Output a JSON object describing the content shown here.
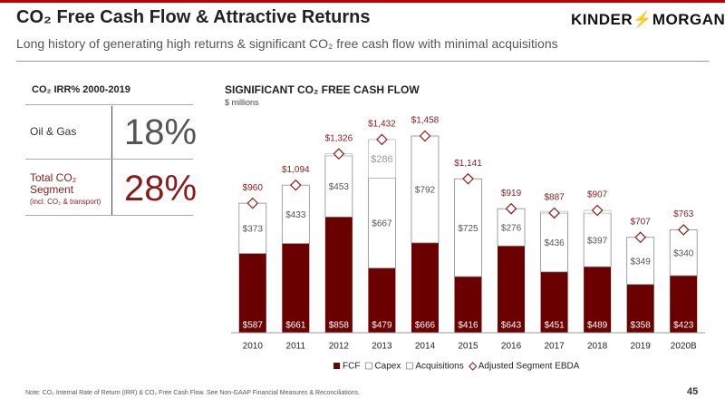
{
  "header": {
    "title": "CO₂ Free Cash Flow & Attractive Returns",
    "subtitle": "Long history of generating high returns & significant CO₂ free cash flow with minimal acquisitions",
    "logo": [
      "KINDER",
      "MORGAN"
    ]
  },
  "irr_table": {
    "title": "CO₂ IRR% 2000-2019",
    "rows": [
      {
        "label_lines": [
          "Oil & Gas"
        ],
        "value": "18%"
      },
      {
        "label_lines": [
          "Total CO₂",
          "Segment"
        ],
        "note": "(incl. CO₂ & transport)",
        "value": "28%"
      }
    ]
  },
  "chart_data": {
    "type": "bar",
    "stacked": true,
    "title": "SIGNIFICANT CO₂ FREE CASH FLOW",
    "subtitle": "$ millions",
    "categories": [
      "2010",
      "2011",
      "2012",
      "2013",
      "2014",
      "2015",
      "2016",
      "2017",
      "2018",
      "2019",
      "2020B"
    ],
    "series": [
      {
        "name": "FCF",
        "color": "#6b0000",
        "values": [
          587,
          661,
          858,
          479,
          666,
          416,
          643,
          451,
          489,
          358,
          423
        ],
        "value_labels": [
          "$587",
          "$661",
          "$858",
          "$479",
          "$666",
          "$416",
          "$643",
          "$451",
          "$489",
          "$358",
          "$423"
        ]
      },
      {
        "name": "Capex",
        "color": "#ffffff",
        "values": [
          373,
          433,
          453,
          667,
          792,
          725,
          276,
          436,
          397,
          349,
          340
        ],
        "value_labels": [
          "$373",
          "$433",
          "$453",
          "$667",
          "$792",
          "$725",
          "$276",
          "$436",
          "$397",
          "$349",
          "$340"
        ]
      },
      {
        "name": "Acquisitions",
        "color": "#ffffff",
        "values": [
          null,
          null,
          15,
          286,
          null,
          null,
          null,
          13,
          21,
          null,
          null
        ],
        "value_labels": [
          null,
          null,
          null,
          "$286",
          null,
          null,
          null,
          null,
          null,
          null,
          null
        ]
      },
      {
        "name": "Adjusted Segment EBDA",
        "color": "#8b1a1a",
        "marker": "diamond",
        "values": [
          960,
          1094,
          1326,
          1432,
          1458,
          1141,
          919,
          887,
          907,
          707,
          763
        ],
        "value_labels": [
          "$960",
          "$1,094",
          "$1,326",
          "$1,432",
          "$1,458",
          "$1,141",
          "$919",
          "$887",
          "$907",
          "$707",
          "$763"
        ]
      }
    ],
    "legend": "bottom"
  },
  "footer": {
    "note": "Note: CO₂ Internal Rate of Return (IRR) & CO₂ Free Cash Flow. See Non-GAAP Financial Measures & Reconciliations.",
    "page": "45"
  }
}
